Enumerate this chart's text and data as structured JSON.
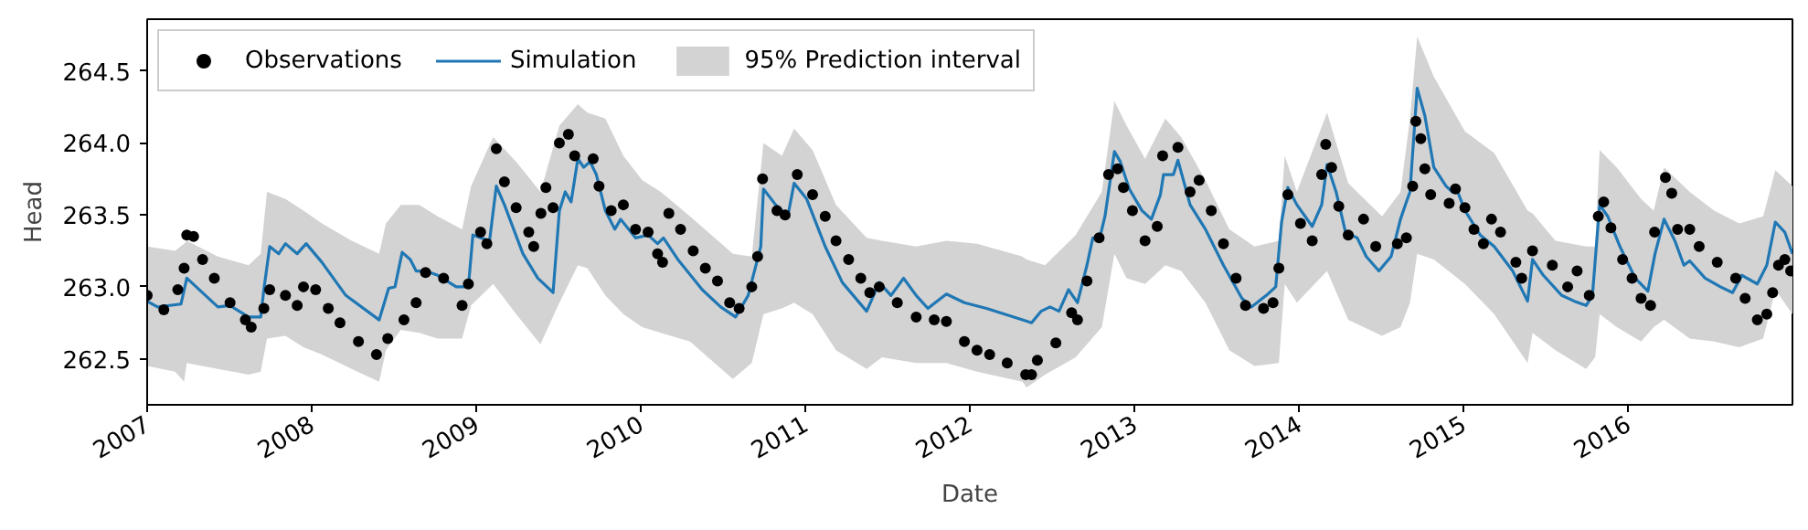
{
  "chart_data": {
    "type": "line",
    "xlabel": "Date",
    "ylabel": "Head",
    "legend": "top left",
    "xlim": [
      "2007-01-01",
      "2016-12-31"
    ],
    "xticks": [
      {
        "value": "2007-01-01",
        "label": "2007"
      },
      {
        "value": "2008-01-01",
        "label": "2008"
      },
      {
        "value": "2009-01-01",
        "label": "2009"
      },
      {
        "value": "2010-01-01",
        "label": "2010"
      },
      {
        "value": "2011-01-01",
        "label": "2011"
      },
      {
        "value": "2012-01-01",
        "label": "2012"
      },
      {
        "value": "2013-01-01",
        "label": "2013"
      },
      {
        "value": "2014-01-01",
        "label": "2014"
      },
      {
        "value": "2015-01-01",
        "label": "2015"
      },
      {
        "value": "2016-01-01",
        "label": "2016"
      }
    ],
    "ylim": [
      262.18,
      264.86
    ],
    "yticks": [
      {
        "value": 262.5,
        "label": "262.5"
      },
      {
        "value": 263,
        "label": "263.0"
      },
      {
        "value": 263.5,
        "label": "263.5"
      },
      {
        "value": 264,
        "label": "264.0"
      },
      {
        "value": 264.5,
        "label": "264.5"
      }
    ],
    "series": [
      {
        "name": "Observations",
        "type": "scatter",
        "color": "#000000",
        "marker": "circle",
        "x": [
          "2007-01-01",
          "2007-02-07",
          "2007-03-10",
          "2007-03-24",
          "2007-03-30",
          "2007-04-14",
          "2007-05-04",
          "2007-05-30",
          "2007-07-04",
          "2007-08-07",
          "2007-08-20",
          "2007-09-17",
          "2007-09-30",
          "2007-11-04",
          "2007-11-30",
          "2007-12-14",
          "2008-01-10",
          "2008-02-07",
          "2008-03-04",
          "2008-04-14",
          "2008-05-24",
          "2008-06-18",
          "2008-07-24",
          "2008-08-20",
          "2008-09-10",
          "2008-10-20",
          "2008-11-30",
          "2008-12-14",
          "2009-01-10",
          "2009-01-24",
          "2009-02-14",
          "2009-03-04",
          "2009-03-30",
          "2009-04-27",
          "2009-05-08",
          "2009-05-24",
          "2009-06-04",
          "2009-06-20",
          "2009-07-04",
          "2009-07-24",
          "2009-08-07",
          "2009-09-17",
          "2009-09-30",
          "2009-10-27",
          "2009-11-23",
          "2009-12-20",
          "2010-01-17",
          "2010-02-07",
          "2010-02-18",
          "2010-03-04",
          "2010-03-30",
          "2010-04-27",
          "2010-05-24",
          "2010-06-20",
          "2010-07-17",
          "2010-08-07",
          "2010-09-04",
          "2010-09-17",
          "2010-09-28",
          "2010-10-30",
          "2010-11-17",
          "2010-12-14",
          "2011-01-17",
          "2011-02-14",
          "2011-03-10",
          "2011-04-07",
          "2011-05-04",
          "2011-05-24",
          "2011-06-14",
          "2011-07-24",
          "2011-09-04",
          "2011-10-14",
          "2011-11-10",
          "2011-12-20",
          "2012-01-17",
          "2012-02-14",
          "2012-03-24",
          "2012-05-04",
          "2012-05-17",
          "2012-05-30",
          "2012-07-10",
          "2012-08-14",
          "2012-08-27",
          "2012-09-17",
          "2012-10-14",
          "2012-11-04",
          "2012-11-24",
          "2012-12-07",
          "2012-12-27",
          "2013-01-24",
          "2013-02-20",
          "2013-03-04",
          "2013-04-07",
          "2013-05-04",
          "2013-05-24",
          "2013-06-20",
          "2013-07-17",
          "2013-08-14",
          "2013-09-04",
          "2013-10-14",
          "2013-11-04",
          "2013-11-17",
          "2013-12-07",
          "2014-01-04",
          "2014-01-30",
          "2014-02-20",
          "2014-03-01",
          "2014-03-14",
          "2014-03-30",
          "2014-04-20",
          "2014-05-24",
          "2014-06-20",
          "2014-08-07",
          "2014-08-27",
          "2014-09-10",
          "2014-09-17",
          "2014-09-28",
          "2014-10-07",
          "2014-10-20",
          "2014-11-30",
          "2014-12-14",
          "2015-01-04",
          "2015-01-24",
          "2015-02-14",
          "2015-03-04",
          "2015-03-24",
          "2015-04-27",
          "2015-05-10",
          "2015-06-03",
          "2015-07-17",
          "2015-08-20",
          "2015-09-10",
          "2015-10-07",
          "2015-10-27",
          "2015-11-08",
          "2015-11-24",
          "2015-12-20",
          "2016-01-10",
          "2016-01-30",
          "2016-02-20",
          "2016-02-29",
          "2016-03-24",
          "2016-04-07",
          "2016-04-20",
          "2016-05-17",
          "2016-06-07",
          "2016-07-17",
          "2016-08-27",
          "2016-09-17",
          "2016-10-14",
          "2016-11-04",
          "2016-11-17",
          "2016-11-30",
          "2016-12-14",
          "2016-12-27"
        ],
        "values": [
          262.94,
          262.84,
          262.98,
          263.13,
          263.36,
          263.35,
          263.19,
          263.06,
          262.89,
          262.77,
          262.72,
          262.85,
          262.98,
          262.94,
          262.87,
          263.0,
          262.98,
          262.85,
          262.75,
          262.62,
          262.53,
          262.64,
          262.77,
          262.89,
          263.1,
          263.06,
          262.87,
          263.02,
          263.38,
          263.3,
          263.96,
          263.73,
          263.55,
          263.38,
          263.28,
          263.51,
          263.69,
          263.55,
          264.0,
          264.06,
          263.91,
          263.89,
          263.7,
          263.53,
          263.57,
          263.4,
          263.38,
          263.23,
          263.17,
          263.51,
          263.4,
          263.25,
          263.13,
          263.04,
          262.89,
          262.85,
          263.0,
          263.21,
          263.75,
          263.53,
          263.5,
          263.78,
          263.64,
          263.49,
          263.32,
          263.19,
          263.06,
          262.96,
          263.0,
          262.89,
          262.79,
          262.77,
          262.76,
          262.62,
          262.56,
          262.53,
          262.47,
          262.39,
          262.39,
          262.49,
          262.61,
          262.82,
          262.77,
          263.04,
          263.34,
          263.78,
          263.82,
          263.69,
          263.53,
          263.32,
          263.42,
          263.91,
          263.97,
          263.66,
          263.74,
          263.53,
          263.3,
          263.06,
          262.87,
          262.85,
          262.89,
          263.13,
          263.64,
          263.44,
          263.32,
          263.78,
          263.99,
          263.83,
          263.56,
          263.36,
          263.47,
          263.28,
          263.3,
          263.34,
          263.7,
          264.15,
          264.03,
          263.82,
          263.64,
          263.58,
          263.68,
          263.55,
          263.4,
          263.3,
          263.47,
          263.38,
          263.17,
          263.06,
          263.25,
          263.15,
          263.0,
          263.11,
          262.94,
          263.49,
          263.59,
          263.41,
          263.19,
          263.06,
          262.92,
          262.87,
          263.38,
          263.76,
          263.65,
          263.4,
          263.4,
          263.28,
          263.17,
          263.06,
          262.92,
          262.77,
          262.81,
          262.96,
          263.15,
          263.19,
          263.11
        ]
      },
      {
        "name": "Simulation",
        "color": "#1f77b4",
        "marker": "none",
        "line_style": "solid",
        "x": [
          "2007-01-01",
          "2007-01-24",
          "2007-03-17",
          "2007-03-30",
          "2007-06-07",
          "2007-07-04",
          "2007-08-14",
          "2007-09-10",
          "2007-09-17",
          "2007-09-30",
          "2007-10-20",
          "2007-11-04",
          "2007-11-30",
          "2007-12-20",
          "2008-01-24",
          "2008-03-17",
          "2008-05-30",
          "2008-06-20",
          "2008-07-04",
          "2008-07-20",
          "2008-08-07",
          "2008-08-20",
          "2008-09-10",
          "2008-10-07",
          "2008-11-17",
          "2008-12-14",
          "2008-12-24",
          "2009-01-10",
          "2009-01-30",
          "2009-02-14",
          "2009-03-04",
          "2009-04-14",
          "2009-05-17",
          "2009-06-20",
          "2009-07-04",
          "2009-07-17",
          "2009-07-30",
          "2009-08-14",
          "2009-08-27",
          "2009-09-10",
          "2009-09-24",
          "2009-10-14",
          "2009-11-04",
          "2009-11-17",
          "2009-12-20",
          "2010-01-17",
          "2010-02-07",
          "2010-02-20",
          "2010-03-24",
          "2010-05-17",
          "2010-06-27",
          "2010-07-30",
          "2010-08-27",
          "2010-09-24",
          "2010-09-30",
          "2010-10-27",
          "2010-11-23",
          "2010-12-07",
          "2011-01-04",
          "2011-02-14",
          "2011-03-24",
          "2011-05-17",
          "2011-06-14",
          "2011-07-10",
          "2011-08-07",
          "2011-09-04",
          "2011-09-30",
          "2011-11-10",
          "2011-12-20",
          "2012-02-07",
          "2012-04-27",
          "2012-05-17",
          "2012-06-07",
          "2012-06-27",
          "2012-07-17",
          "2012-08-07",
          "2012-08-27",
          "2012-09-17",
          "2012-09-30",
          "2012-10-14",
          "2012-10-27",
          "2012-11-17",
          "2012-11-30",
          "2012-12-20",
          "2013-01-17",
          "2013-02-07",
          "2013-02-27",
          "2013-03-06",
          "2013-03-28",
          "2013-04-07",
          "2013-05-04",
          "2013-06-07",
          "2013-07-17",
          "2013-08-27",
          "2013-09-17",
          "2013-10-20",
          "2013-11-10",
          "2013-11-23",
          "2013-12-07",
          "2013-12-27",
          "2014-01-30",
          "2014-02-20",
          "2014-03-04",
          "2014-03-24",
          "2014-04-14",
          "2014-05-10",
          "2014-05-30",
          "2014-06-27",
          "2014-07-24",
          "2014-08-14",
          "2014-08-27",
          "2014-09-04",
          "2014-09-20",
          "2014-10-07",
          "2014-10-27",
          "2014-11-23",
          "2014-12-07",
          "2014-12-14",
          "2015-01-04",
          "2015-02-07",
          "2015-03-10",
          "2015-04-20",
          "2015-05-23",
          "2015-06-03",
          "2015-06-27",
          "2015-08-07",
          "2015-09-04",
          "2015-09-30",
          "2015-10-14",
          "2015-10-30",
          "2015-11-17",
          "2015-12-14",
          "2016-01-17",
          "2016-02-14",
          "2016-03-01",
          "2016-03-21",
          "2016-04-14",
          "2016-05-04",
          "2016-05-17",
          "2016-06-20",
          "2016-07-24",
          "2016-08-20",
          "2016-09-10",
          "2016-10-14",
          "2016-11-04",
          "2016-11-23",
          "2016-12-14",
          "2016-12-31"
        ],
        "values": [
          262.9,
          262.86,
          262.88,
          263.06,
          262.86,
          262.87,
          262.79,
          262.79,
          262.98,
          263.28,
          263.23,
          263.3,
          263.23,
          263.3,
          263.17,
          262.94,
          262.77,
          262.99,
          263.0,
          263.24,
          263.19,
          263.11,
          263.11,
          263.08,
          263.0,
          263.0,
          263.36,
          263.34,
          263.32,
          263.7,
          263.57,
          263.23,
          263.06,
          262.96,
          263.53,
          263.66,
          263.59,
          263.89,
          263.83,
          263.87,
          263.78,
          263.53,
          263.4,
          263.47,
          263.34,
          263.36,
          263.3,
          263.34,
          263.19,
          262.98,
          262.86,
          262.79,
          262.94,
          263.28,
          263.68,
          263.57,
          263.49,
          263.72,
          263.61,
          263.28,
          263.03,
          262.83,
          263.03,
          262.94,
          263.06,
          262.94,
          262.85,
          262.95,
          262.89,
          262.85,
          262.77,
          262.75,
          262.83,
          262.86,
          262.83,
          262.98,
          262.89,
          263.15,
          263.34,
          263.32,
          263.49,
          263.94,
          263.87,
          263.68,
          263.53,
          263.47,
          263.64,
          263.78,
          263.78,
          263.88,
          263.57,
          263.4,
          263.15,
          262.92,
          262.86,
          262.94,
          263.0,
          263.45,
          263.69,
          263.57,
          263.42,
          263.57,
          263.85,
          263.66,
          263.38,
          263.34,
          263.21,
          263.11,
          263.21,
          263.47,
          263.59,
          263.66,
          264.38,
          264.19,
          263.83,
          263.7,
          263.66,
          263.7,
          263.53,
          263.36,
          263.28,
          263.11,
          262.9,
          263.19,
          263.08,
          262.94,
          262.9,
          262.87,
          262.94,
          263.57,
          263.49,
          263.28,
          263.06,
          262.97,
          263.23,
          263.47,
          263.32,
          263.15,
          263.18,
          263.06,
          263.0,
          262.96,
          263.08,
          263.02,
          263.15,
          263.45,
          263.38,
          263.23
        ]
      },
      {
        "name": "95% Prediction interval",
        "type": "area",
        "color": "#d3d3d3",
        "x": [
          "2007-01-01",
          "2007-03-04",
          "2007-03-24",
          "2007-03-30",
          "2007-06-07",
          "2007-08-14",
          "2007-09-10",
          "2007-09-24",
          "2007-11-04",
          "2007-12-14",
          "2008-01-24",
          "2008-03-30",
          "2008-05-30",
          "2008-06-14",
          "2008-07-17",
          "2008-08-27",
          "2008-10-07",
          "2008-11-30",
          "2008-12-20",
          "2009-02-07",
          "2009-03-30",
          "2009-05-23",
          "2009-07-04",
          "2009-08-14",
          "2009-09-04",
          "2009-10-14",
          "2009-11-23",
          "2010-01-04",
          "2010-02-14",
          "2010-04-20",
          "2010-07-24",
          "2010-09-04",
          "2010-09-30",
          "2010-11-10",
          "2010-12-07",
          "2011-01-17",
          "2011-03-10",
          "2011-05-17",
          "2011-06-20",
          "2011-09-04",
          "2011-11-10",
          "2012-01-17",
          "2012-04-27",
          "2012-05-06",
          "2012-06-16",
          "2012-08-23",
          "2012-10-20",
          "2012-11-17",
          "2012-12-14",
          "2013-01-24",
          "2013-03-10",
          "2013-04-14",
          "2013-06-07",
          "2013-07-30",
          "2013-09-24",
          "2013-11-17",
          "2013-11-30",
          "2013-12-27",
          "2014-03-04",
          "2014-04-20",
          "2014-07-04",
          "2014-08-14",
          "2014-09-04",
          "2014-09-20",
          "2014-10-27",
          "2015-01-04",
          "2015-03-10",
          "2015-05-23",
          "2015-06-03",
          "2015-07-24",
          "2015-09-30",
          "2015-10-20",
          "2015-10-30",
          "2015-12-07",
          "2016-01-30",
          "2016-02-27",
          "2016-03-21",
          "2016-05-17",
          "2016-07-10",
          "2016-09-04",
          "2016-10-27",
          "2016-11-23",
          "2016-12-31"
        ],
        "values": [
          null,
          null,
          null,
          null,
          null,
          null,
          null,
          null,
          null,
          null,
          null,
          null,
          null,
          null,
          null,
          null,
          null,
          null,
          null,
          null,
          null,
          null,
          null,
          null,
          null,
          null,
          null,
          null,
          null,
          null,
          null,
          null,
          null,
          null,
          null,
          null,
          null,
          null,
          null,
          null,
          null,
          null,
          null,
          null,
          null,
          null,
          null,
          null,
          null,
          null,
          null,
          null,
          null,
          null,
          null,
          null,
          null,
          null,
          null,
          null,
          null,
          null,
          null,
          null,
          null,
          null,
          null,
          null,
          null,
          null,
          null,
          null,
          null,
          null,
          null,
          null,
          null,
          null,
          null,
          null,
          null,
          null,
          null
        ],
        "lower": [
          262.45,
          262.41,
          262.34,
          262.47,
          262.43,
          262.39,
          262.41,
          262.64,
          262.66,
          262.58,
          262.53,
          262.43,
          262.34,
          262.56,
          262.7,
          262.68,
          262.64,
          262.64,
          262.87,
          263.02,
          262.81,
          262.6,
          262.89,
          263.15,
          263.13,
          262.94,
          262.81,
          262.72,
          262.68,
          262.62,
          262.36,
          262.47,
          262.81,
          262.85,
          262.89,
          262.81,
          262.56,
          262.43,
          262.51,
          262.47,
          262.47,
          262.41,
          262.34,
          262.3,
          262.39,
          262.51,
          262.72,
          263.23,
          263.06,
          263.02,
          263.15,
          263.11,
          262.89,
          262.56,
          262.45,
          262.47,
          263.02,
          262.89,
          263.11,
          262.77,
          262.66,
          262.72,
          262.89,
          263.23,
          263.19,
          263.02,
          262.81,
          262.47,
          262.68,
          262.56,
          262.43,
          262.51,
          262.81,
          262.72,
          262.62,
          262.72,
          262.77,
          262.64,
          262.62,
          262.58,
          262.64,
          262.98,
          262.81
        ],
        "upper": [
          263.28,
          263.25,
          263.3,
          263.32,
          263.21,
          263.15,
          263.23,
          263.66,
          263.61,
          263.53,
          263.44,
          263.32,
          263.23,
          263.44,
          263.57,
          263.57,
          263.49,
          263.4,
          263.7,
          264.04,
          263.87,
          263.66,
          264.12,
          264.27,
          264.21,
          264.17,
          263.91,
          263.74,
          263.66,
          263.49,
          263.23,
          263.21,
          264.0,
          263.91,
          264.1,
          263.95,
          263.57,
          263.34,
          263.32,
          263.28,
          263.32,
          263.3,
          263.21,
          263.19,
          263.15,
          263.36,
          263.66,
          264.29,
          264.12,
          263.89,
          264.17,
          264.04,
          263.74,
          263.4,
          263.28,
          263.32,
          263.91,
          263.66,
          264.21,
          263.72,
          263.49,
          263.66,
          264.17,
          264.74,
          264.46,
          264.08,
          263.93,
          263.53,
          263.51,
          263.32,
          263.28,
          263.28,
          263.95,
          263.83,
          263.61,
          263.53,
          263.83,
          263.66,
          263.53,
          263.44,
          263.49,
          263.81,
          263.7
        ]
      }
    ]
  }
}
